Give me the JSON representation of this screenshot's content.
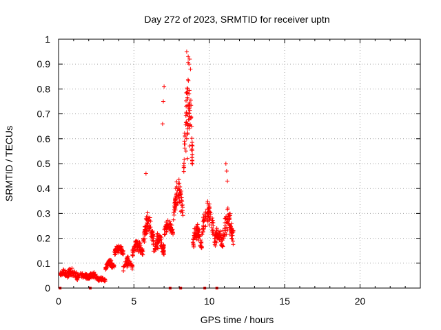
{
  "chart_data": {
    "type": "scatter",
    "title": "Day 272 of 2023, SRMTID for receiver uptn",
    "xlabel": "GPS time / hours",
    "ylabel": "SRMTID / TECUs",
    "xlim": [
      0,
      24
    ],
    "ylim": [
      0,
      1
    ],
    "xticks": [
      0,
      5,
      10,
      15,
      20
    ],
    "yticks": [
      0,
      0.1,
      0.2,
      0.3,
      0.4,
      0.5,
      0.6,
      0.7,
      0.8,
      0.9,
      1
    ],
    "ytick_labels": [
      "0",
      "0.1",
      "0.2",
      "0.3",
      "0.4",
      "0.5",
      "0.6",
      "0.7",
      "0.8",
      "0.9",
      "1"
    ],
    "xtick_labels": [
      "0",
      "5",
      "10",
      "15",
      "20"
    ],
    "grid": true,
    "marker": "+",
    "color": "#ff0000",
    "series": [
      {
        "name": "SRMTID",
        "segments": [
          {
            "t0": 0.1,
            "t1": 0.5,
            "base": 0.055,
            "amp": 0.015,
            "noise": 0.02,
            "n": 40
          },
          {
            "t0": 0.5,
            "t1": 1.2,
            "base": 0.05,
            "amp": 0.02,
            "noise": 0.025,
            "n": 60
          },
          {
            "t0": 1.2,
            "t1": 2.0,
            "base": 0.04,
            "amp": 0.015,
            "noise": 0.02,
            "n": 60
          },
          {
            "t0": 2.0,
            "t1": 2.6,
            "base": 0.045,
            "amp": 0.01,
            "noise": 0.02,
            "n": 50
          },
          {
            "t0": 2.6,
            "t1": 3.1,
            "base": 0.03,
            "amp": 0.01,
            "noise": 0.012,
            "n": 50
          },
          {
            "t0": 3.1,
            "t1": 3.7,
            "base": 0.08,
            "amp": 0.03,
            "noise": 0.02,
            "n": 60
          },
          {
            "t0": 3.7,
            "t1": 4.3,
            "base": 0.14,
            "amp": 0.03,
            "noise": 0.02,
            "n": 60
          },
          {
            "t0": 4.3,
            "t1": 4.9,
            "base": 0.08,
            "amp": 0.04,
            "noise": 0.025,
            "n": 50
          },
          {
            "t0": 4.9,
            "t1": 5.6,
            "base": 0.14,
            "amp": 0.05,
            "noise": 0.03,
            "n": 70
          },
          {
            "t0": 5.6,
            "t1": 6.3,
            "base": 0.19,
            "amp": 0.1,
            "noise": 0.05,
            "n": 80
          },
          {
            "t0": 6.3,
            "t1": 7.0,
            "base": 0.15,
            "amp": 0.06,
            "noise": 0.04,
            "n": 70
          },
          {
            "t0": 7.0,
            "t1": 7.6,
            "base": 0.22,
            "amp": 0.05,
            "noise": 0.03,
            "n": 60
          },
          {
            "t0": 7.6,
            "t1": 8.3,
            "base": 0.28,
            "amp": 0.15,
            "noise": 0.06,
            "n": 70
          },
          {
            "t0": 8.3,
            "t1": 8.9,
            "base": 0.5,
            "amp": 0.35,
            "noise": 0.12,
            "n": 80
          },
          {
            "t0": 8.9,
            "t1": 9.5,
            "base": 0.17,
            "amp": 0.08,
            "noise": 0.05,
            "n": 70
          },
          {
            "t0": 9.5,
            "t1": 10.3,
            "base": 0.22,
            "amp": 0.13,
            "noise": 0.06,
            "n": 70
          },
          {
            "t0": 10.3,
            "t1": 10.9,
            "base": 0.17,
            "amp": 0.06,
            "noise": 0.04,
            "n": 60
          },
          {
            "t0": 10.9,
            "t1": 11.6,
            "base": 0.2,
            "amp": 0.1,
            "noise": 0.06,
            "n": 70
          }
        ],
        "highlights": [
          {
            "x": 8.5,
            "y": 0.95
          },
          {
            "x": 8.6,
            "y": 0.93
          },
          {
            "x": 8.7,
            "y": 0.92
          },
          {
            "x": 8.65,
            "y": 0.9
          },
          {
            "x": 8.75,
            "y": 0.88
          },
          {
            "x": 7.0,
            "y": 0.81
          },
          {
            "x": 6.95,
            "y": 0.75
          },
          {
            "x": 8.65,
            "y": 0.78
          },
          {
            "x": 8.7,
            "y": 0.74
          },
          {
            "x": 6.9,
            "y": 0.66
          },
          {
            "x": 8.55,
            "y": 0.64
          },
          {
            "x": 5.8,
            "y": 0.46
          },
          {
            "x": 11.1,
            "y": 0.5
          },
          {
            "x": 11.15,
            "y": 0.47
          },
          {
            "x": 11.2,
            "y": 0.43
          },
          {
            "x": 8.45,
            "y": 0.55
          },
          {
            "x": 8.55,
            "y": 0.52
          },
          {
            "x": 8.5,
            "y": 0.6
          }
        ],
        "zero_points": [
          0.1,
          2.1,
          7.4,
          8.1,
          9.7,
          10.5
        ]
      }
    ]
  }
}
